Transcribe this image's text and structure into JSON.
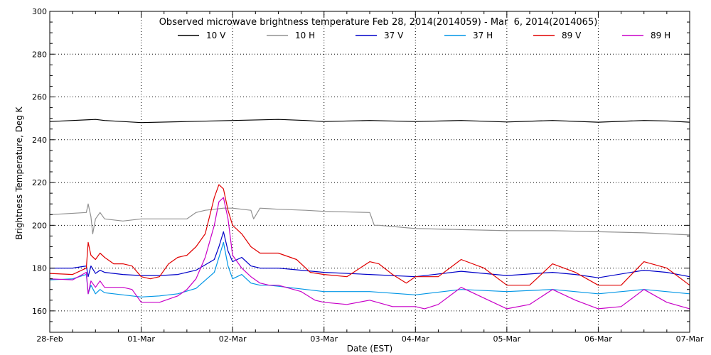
{
  "chart_data": {
    "type": "line",
    "title": "Observed microwave brightness temperature Feb 28, 2014(2014059) - Mar  6, 2014(2014065)",
    "xlabel": "Date (EST)",
    "ylabel": "Brightness Temperature, Deg K",
    "xlim": [
      "28-Feb",
      "07-Mar"
    ],
    "ylim": [
      150,
      300
    ],
    "x_ticks": [
      "28-Feb",
      "01-Mar",
      "02-Mar",
      "03-Mar",
      "04-Mar",
      "05-Mar",
      "06-Mar",
      "07-Mar"
    ],
    "y_ticks": [
      160,
      180,
      200,
      220,
      240,
      260,
      280,
      300
    ],
    "grid": true,
    "legend_position": "top",
    "x_unit_note": "x values are in days (fractional), 0 = 28-Feb 00:00, 7 = 07-Mar 00:00",
    "series": [
      {
        "name": "10 V",
        "color": "#000000",
        "x": [
          0,
          0.25,
          0.5,
          0.6,
          1.0,
          1.5,
          2.0,
          2.5,
          2.8,
          3.0,
          3.5,
          4.0,
          4.5,
          5.0,
          5.5,
          6.0,
          6.5,
          6.75,
          7.0
        ],
        "y": [
          248.5,
          249,
          249.5,
          249,
          248,
          248.5,
          249,
          249.5,
          249,
          248.5,
          249,
          248.5,
          249,
          248.3,
          249,
          248.2,
          249,
          248.8,
          248.2
        ]
      },
      {
        "name": "10 H",
        "color": "#909090",
        "x": [
          0,
          0.2,
          0.4,
          0.42,
          0.45,
          0.47,
          0.5,
          0.55,
          0.6,
          0.8,
          1.0,
          1.5,
          1.6,
          1.7,
          1.9,
          2.0,
          2.2,
          2.23,
          2.3,
          2.5,
          2.8,
          3.0,
          3.5,
          3.55,
          3.6,
          4.0,
          4.5,
          5.0,
          5.5,
          6.0,
          6.5,
          7.0
        ],
        "y": [
          205,
          205.5,
          206,
          210,
          204,
          196,
          203,
          206,
          203,
          202,
          203,
          203,
          206,
          207,
          208,
          208,
          207,
          203,
          208,
          207.5,
          207,
          206.5,
          206,
          200,
          200,
          198.5,
          198,
          197.5,
          197.5,
          197,
          196.5,
          195.5
        ]
      },
      {
        "name": "37 V",
        "color": "#0000c8",
        "x": [
          0,
          0.25,
          0.4,
          0.42,
          0.45,
          0.5,
          0.55,
          0.6,
          0.8,
          1.0,
          1.2,
          1.4,
          1.6,
          1.8,
          1.85,
          1.9,
          1.95,
          2.0,
          2.1,
          2.2,
          2.3,
          2.4,
          2.5,
          3.0,
          3.5,
          4.0,
          4.5,
          5.0,
          5.5,
          5.75,
          6.0,
          6.5,
          6.75,
          7.0
        ],
        "y": [
          180,
          180,
          181,
          176,
          181,
          177.5,
          179,
          178,
          177,
          176.5,
          176.5,
          177,
          179,
          184,
          190,
          197,
          188,
          183,
          185,
          181,
          180,
          180,
          180,
          178,
          177,
          176,
          178.5,
          176.5,
          178,
          177,
          175.5,
          179,
          178,
          176
        ]
      },
      {
        "name": "37 H",
        "color": "#0096e6",
        "x": [
          0,
          0.25,
          0.4,
          0.42,
          0.45,
          0.5,
          0.55,
          0.6,
          0.8,
          1.0,
          1.2,
          1.4,
          1.6,
          1.8,
          1.85,
          1.9,
          1.95,
          2.0,
          2.1,
          2.2,
          2.3,
          2.4,
          2.5,
          3.0,
          3.5,
          4.0,
          4.5,
          5.0,
          5.5,
          6.0,
          6.5,
          7.0
        ],
        "y": [
          174.5,
          175,
          177,
          168,
          172,
          168,
          170,
          168.5,
          167.5,
          166.5,
          167,
          168,
          170.5,
          178,
          185,
          192,
          181,
          175,
          177,
          173,
          172,
          172,
          171.5,
          169,
          169,
          167.5,
          170,
          169,
          170,
          168,
          170,
          168
        ]
      },
      {
        "name": "89 V",
        "color": "#e00000",
        "x": [
          0,
          0.25,
          0.4,
          0.42,
          0.45,
          0.5,
          0.55,
          0.6,
          0.7,
          0.8,
          0.9,
          1.0,
          1.1,
          1.2,
          1.3,
          1.4,
          1.5,
          1.6,
          1.7,
          1.8,
          1.85,
          1.9,
          1.95,
          2.0,
          2.1,
          2.2,
          2.3,
          2.4,
          2.5,
          2.7,
          2.85,
          3.0,
          3.25,
          3.5,
          3.6,
          3.75,
          3.9,
          4.0,
          4.25,
          4.5,
          4.75,
          5.0,
          5.25,
          5.5,
          5.75,
          6.0,
          6.25,
          6.5,
          6.75,
          7.0
        ],
        "y": [
          177.5,
          177,
          180,
          192,
          186,
          184,
          187,
          185,
          182,
          182,
          181,
          176,
          175,
          176,
          182,
          185,
          186,
          190,
          196,
          213,
          219,
          217,
          207,
          200,
          196,
          190,
          187,
          187,
          187,
          184,
          178,
          177,
          176,
          183,
          182,
          177,
          173,
          176,
          176,
          184,
          180,
          172,
          172,
          182,
          178,
          172,
          172,
          183,
          180,
          172
        ]
      },
      {
        "name": "89 H",
        "color": "#c800c8",
        "x": [
          0,
          0.25,
          0.4,
          0.42,
          0.45,
          0.5,
          0.55,
          0.6,
          0.8,
          0.9,
          1.0,
          1.2,
          1.4,
          1.5,
          1.6,
          1.7,
          1.8,
          1.85,
          1.9,
          1.95,
          2.0,
          2.1,
          2.2,
          2.3,
          2.4,
          2.5,
          2.75,
          2.9,
          3.0,
          3.25,
          3.5,
          3.75,
          4.0,
          4.1,
          4.25,
          4.5,
          4.75,
          5.0,
          5.25,
          5.5,
          5.75,
          6.0,
          6.25,
          6.5,
          6.75,
          7.0
        ],
        "y": [
          175,
          174.5,
          178,
          168,
          174,
          171,
          174,
          171,
          171,
          170,
          164,
          164,
          167,
          170,
          175,
          185,
          200,
          211,
          213,
          203,
          186,
          180,
          176,
          173,
          172,
          172,
          169,
          165,
          164,
          163,
          165,
          162,
          162,
          161,
          163,
          171,
          166,
          161,
          163,
          170,
          165,
          161,
          162,
          170,
          164,
          161
        ]
      }
    ]
  }
}
